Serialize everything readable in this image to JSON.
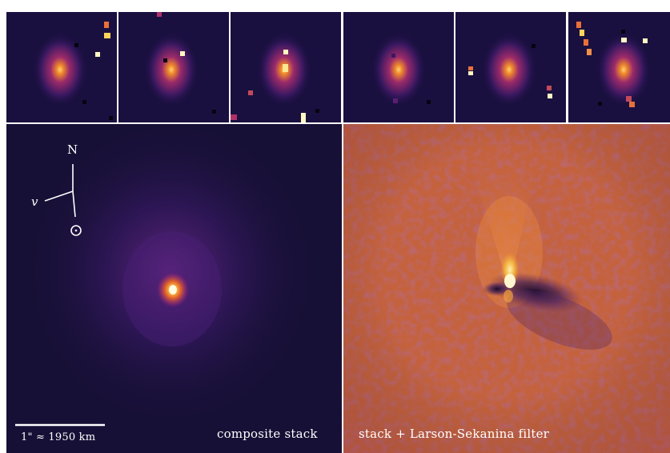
{
  "colors": {
    "background": "#ffffff",
    "sky": "#171036",
    "sky_dark": "#0d0a24",
    "glow_purple": "#7b2e96",
    "coma_orange": "#f2a93a",
    "nucleus": "#fff6c8",
    "filtered_bg": "#c4623e",
    "filtered_bright": "#f7c95d",
    "filtered_dark": "#3b1b52",
    "annotation": "#ffffff"
  },
  "thumbnails": [
    {
      "name": "frame-1"
    },
    {
      "name": "frame-2"
    },
    {
      "name": "frame-3"
    },
    {
      "name": "frame-4"
    },
    {
      "name": "frame-5"
    },
    {
      "name": "frame-6"
    }
  ],
  "left_panel": {
    "label": "composite stack",
    "scale_bar_label": "1\" ≈ 1950 km",
    "compass": {
      "north_label": "N",
      "velocity_label": "v",
      "sun_symbol": "⊙"
    }
  },
  "right_panel": {
    "label": "stack + Larson-Sekanina filter"
  }
}
